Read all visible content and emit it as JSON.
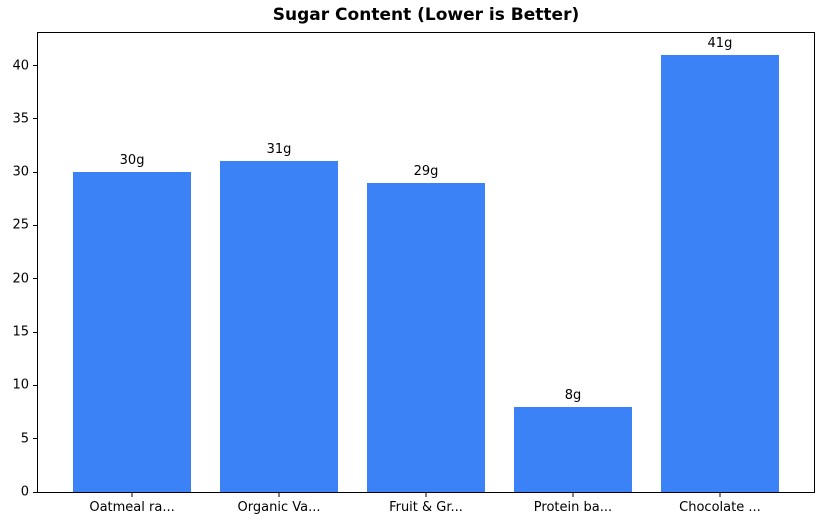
{
  "chart_data": {
    "type": "bar",
    "title": "Sugar Content (Lower is Better)",
    "categories": [
      "Oatmeal ra...",
      "Organic Va...",
      "Fruit & Gr...",
      "Protein ba...",
      "Chocolate ..."
    ],
    "values": [
      30,
      31,
      29,
      8,
      41
    ],
    "bar_labels": [
      "30g",
      "31g",
      "29g",
      "8g",
      "41g"
    ],
    "yticks": [
      0,
      5,
      10,
      15,
      20,
      25,
      30,
      35,
      40
    ],
    "ylim": [
      0,
      43.05
    ],
    "xlim": [
      -0.64,
      4.64
    ],
    "bar_width": 0.8,
    "bar_color": "#3b82f6",
    "xlabel": "",
    "ylabel": "",
    "grid": false,
    "legend": "none"
  }
}
